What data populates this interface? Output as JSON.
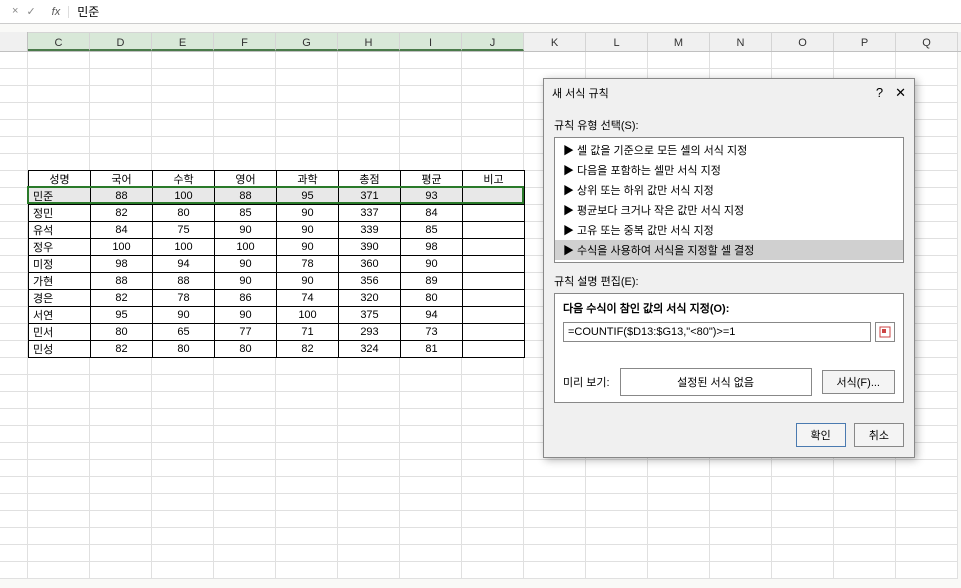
{
  "formula_bar": {
    "fx": "fx",
    "value": "민준",
    "cancel": "×",
    "ok": "✓"
  },
  "columns": [
    "C",
    "D",
    "E",
    "F",
    "G",
    "H",
    "I",
    "J",
    "K",
    "L",
    "M",
    "N",
    "O",
    "P",
    "Q"
  ],
  "selected_cols": [
    "C",
    "D",
    "E",
    "F",
    "G",
    "H",
    "I",
    "J"
  ],
  "table": {
    "headers": [
      "성명",
      "국어",
      "수학",
      "영어",
      "과학",
      "총점",
      "평균",
      "비고"
    ],
    "rows": [
      [
        "민준",
        "88",
        "100",
        "88",
        "95",
        "371",
        "93",
        ""
      ],
      [
        "정민",
        "82",
        "80",
        "85",
        "90",
        "337",
        "84",
        ""
      ],
      [
        "유석",
        "84",
        "75",
        "90",
        "90",
        "339",
        "85",
        ""
      ],
      [
        "정우",
        "100",
        "100",
        "100",
        "90",
        "390",
        "98",
        ""
      ],
      [
        "미정",
        "98",
        "94",
        "90",
        "78",
        "360",
        "90",
        ""
      ],
      [
        "가현",
        "88",
        "88",
        "90",
        "90",
        "356",
        "89",
        ""
      ],
      [
        "경은",
        "82",
        "78",
        "86",
        "74",
        "320",
        "80",
        ""
      ],
      [
        "서연",
        "95",
        "90",
        "90",
        "100",
        "375",
        "94",
        ""
      ],
      [
        "민서",
        "80",
        "65",
        "77",
        "71",
        "293",
        "73",
        ""
      ],
      [
        "민성",
        "82",
        "80",
        "80",
        "82",
        "324",
        "81",
        ""
      ]
    ]
  },
  "dialog": {
    "title": "새 서식 규칙",
    "help": "?",
    "close": "✕",
    "rule_type_label": "규칙 유형 선택(S):",
    "rule_types": [
      "▶ 셀 값을 기준으로 모든 셀의 서식 지정",
      "▶ 다음을 포함하는 셀만 서식 지정",
      "▶ 상위 또는 하위 값만 서식 지정",
      "▶ 평균보다 크거나 작은 값만 서식 지정",
      "▶ 고유 또는 중복 값만 서식 지정",
      "▶ 수식을 사용하여 서식을 지정할 셀 결정"
    ],
    "selected_rule": 5,
    "edit_label": "규칙 설명 편집(E):",
    "formula_label": "다음 수식이 참인 값의 서식 지정(O):",
    "formula_value": "=COUNTIF($D13:$G13,\"<80\")>=1",
    "preview_label": "미리 보기:",
    "preview_value": "설정된 서식 없음",
    "format_btn": "서식(F)...",
    "ok_btn": "확인",
    "cancel_btn": "취소"
  },
  "colors": {
    "sheet_bg": "#ffffff",
    "grid": "#e0e0e0",
    "selection": "#2a7a2a",
    "dialog_bg": "#f0f0f0",
    "header_sel": "#d8e8d8"
  }
}
